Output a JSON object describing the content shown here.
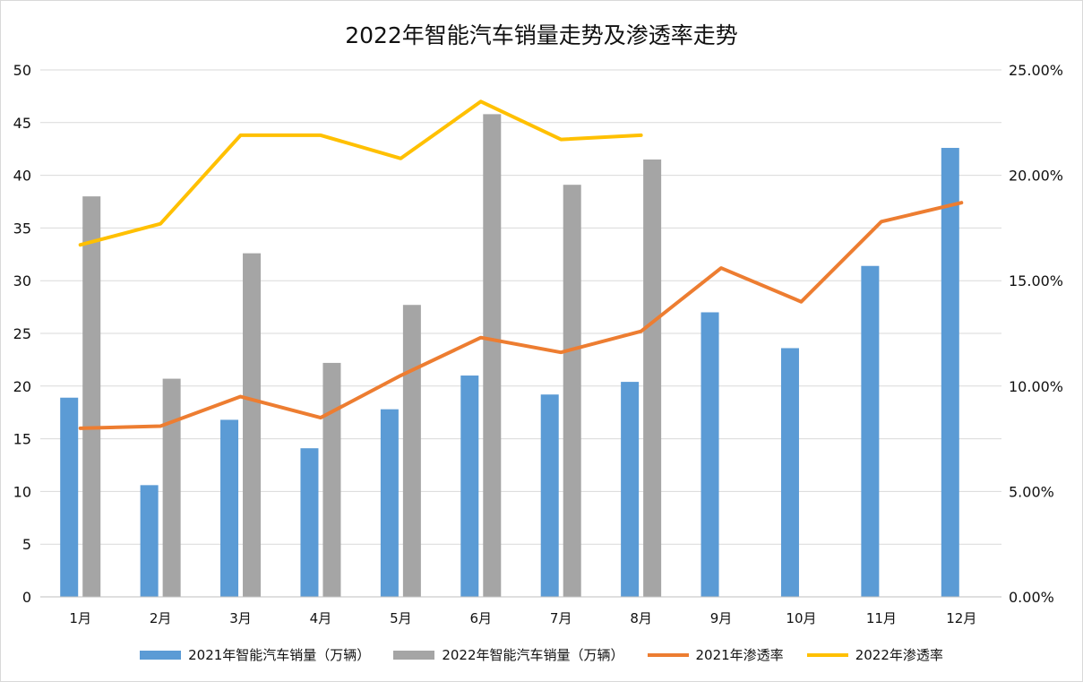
{
  "chart_data": {
    "type": "bar",
    "title": "2022年智能汽车销量走势及渗透率走势",
    "categories": [
      "1月",
      "2月",
      "3月",
      "4月",
      "5月",
      "6月",
      "7月",
      "8月",
      "9月",
      "10月",
      "11月",
      "12月"
    ],
    "y_left_ticks": [
      "0",
      "5",
      "10",
      "15",
      "20",
      "25",
      "30",
      "35",
      "40",
      "45",
      "50"
    ],
    "y_right_ticks": [
      "0.00%",
      "5.00%",
      "10.00%",
      "15.00%",
      "20.00%",
      "25.00%"
    ],
    "ylim_left": [
      0,
      50
    ],
    "ylim_right": [
      0,
      0.25
    ],
    "series": [
      {
        "name": "2021年智能汽车销量（万辆）",
        "kind": "bar",
        "axis": "left",
        "color": "#5b9bd5",
        "values": [
          18.9,
          10.6,
          16.8,
          14.1,
          17.8,
          21.0,
          19.2,
          20.4,
          27.0,
          23.6,
          31.4,
          42.6
        ]
      },
      {
        "name": "2022年智能汽车销量（万辆）",
        "kind": "bar",
        "axis": "left",
        "color": "#a5a5a5",
        "values": [
          38.0,
          20.7,
          32.6,
          22.2,
          27.7,
          45.8,
          39.1,
          41.5,
          null,
          null,
          null,
          null
        ]
      },
      {
        "name": "2021年渗透率",
        "kind": "line",
        "axis": "right",
        "color": "#ed7d31",
        "values": [
          0.08,
          0.081,
          0.095,
          0.085,
          0.105,
          0.123,
          0.116,
          0.126,
          0.156,
          0.14,
          0.178,
          0.187
        ]
      },
      {
        "name": "2022年渗透率",
        "kind": "line",
        "axis": "right",
        "color": "#ffc000",
        "values": [
          0.167,
          0.177,
          0.219,
          0.219,
          0.208,
          0.235,
          0.217,
          0.219,
          null,
          null,
          null,
          null
        ]
      }
    ],
    "grid": true,
    "legend": "bottom"
  }
}
